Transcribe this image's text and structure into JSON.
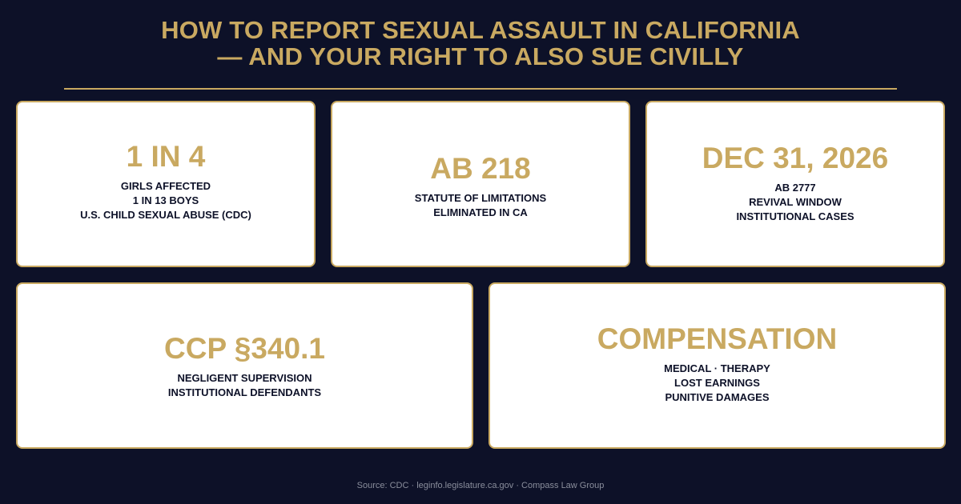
{
  "title": {
    "line1": "HOW TO REPORT SEXUAL ASSAULT IN CALIFORNIA",
    "line2": "— AND YOUR RIGHT TO ALSO SUE CIVILLY"
  },
  "cards": [
    {
      "headline": "1 IN 4",
      "lines": [
        "GIRLS AFFECTED",
        "1 IN 13 BOYS",
        "U.S. CHILD SEXUAL ABUSE (CDC)"
      ]
    },
    {
      "headline": "AB 218",
      "lines": [
        "STATUTE OF LIMITATIONS",
        "ELIMINATED IN CA"
      ]
    },
    {
      "headline": "DEC 31, 2026",
      "lines": [
        "AB 2777",
        "REVIVAL WINDOW",
        "INSTITUTIONAL CASES"
      ]
    },
    {
      "headline": "CCP §340.1",
      "lines": [
        "NEGLIGENT SUPERVISION",
        "INSTITUTIONAL DEFENDANTS"
      ]
    },
    {
      "headline": "COMPENSATION",
      "lines": [
        "MEDICAL · THERAPY",
        "LOST EARNINGS",
        "PUNITIVE DAMAGES"
      ]
    }
  ],
  "footer": "Source: CDC · leginfo.legislature.ca.gov · Compass Law Group",
  "colors": {
    "background": "#0d1128",
    "accent": "#c9a961",
    "card": "#ffffff",
    "card_text": "#0d1128",
    "footer_text": "#8a8e9c"
  }
}
